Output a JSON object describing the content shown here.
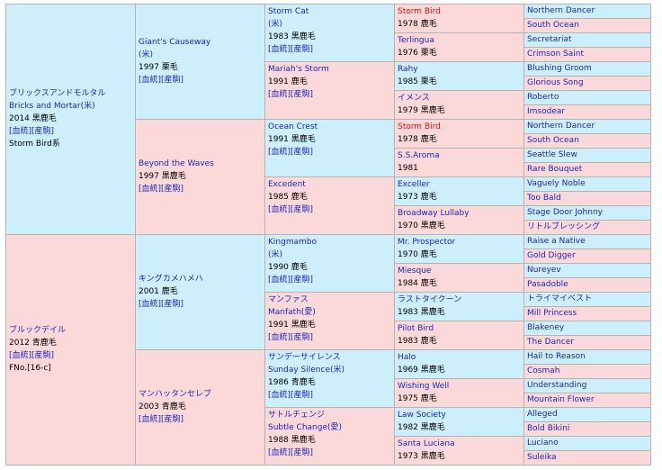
{
  "pedigree": {
    "sire": {
      "name": "ブリックスアンドモルタル",
      "name_en": "Bricks and Mortar(米)",
      "year_color": "2014 黒鹿毛",
      "links": "[血統][産駒]",
      "line": "Storm Bird系",
      "sire": {
        "name": "Giant's Causeway",
        "origin": "(米)",
        "year_color": "1997 栗毛",
        "links": "[血統][産駒]",
        "sire": {
          "name": "Storm Cat",
          "origin": "(米)",
          "year_color": "1983 黒鹿毛",
          "links": "[血統][産駒]",
          "sire": {
            "name": "Storm Bird",
            "year_color": "1978 鹿毛",
            "sire": "Northern Dancer",
            "dam": "South Ocean"
          },
          "dam": {
            "name": "Terlingua",
            "year_color": "1976 栗毛",
            "sire": "Secretariat",
            "dam": "Crimson Saint"
          }
        },
        "dam": {
          "name": "Mariah's Storm",
          "year_color": "1991 鹿毛",
          "links": "[血統][産駒]",
          "sire": {
            "name": "Rahy",
            "year_color": "1985 栗毛",
            "sire": "Blushing Groom",
            "dam": "Glorious Song"
          },
          "dam": {
            "name": "イメンス",
            "year_color": "1979 黒鹿毛",
            "sire": "Roberto",
            "dam": "Imsodear"
          }
        }
      },
      "dam": {
        "name": "Beyond the Waves",
        "year_color": "1997 黒鹿毛",
        "links": "[血統][産駒]",
        "sire": {
          "name": "Ocean Crest",
          "year_color": "1991 黒鹿毛",
          "links": "[血統][産駒]",
          "sire": {
            "name": "Storm Bird",
            "year_color": "1978 鹿毛",
            "sire": "Northern Dancer",
            "dam": "South Ocean"
          },
          "dam": {
            "name": "S.S.Aroma",
            "year_color": "1981",
            "sire": "Seattle Slew",
            "dam": "Rare Bouquet"
          }
        },
        "dam": {
          "name": "Excedent",
          "year_color": "1985 鹿毛",
          "links": "[血統][産駒]",
          "sire": {
            "name": "Exceller",
            "year_color": "1973 鹿毛",
            "sire": "Vaguely Noble",
            "dam": "Too Bald"
          },
          "dam": {
            "name": "Broadway Lullaby",
            "year_color": "1970 黒鹿毛",
            "sire": "Stage Door Johnny",
            "dam": "リトルブレッシング"
          }
        }
      }
    },
    "dam": {
      "name": "ブルックデイル",
      "year_color": "2012 青鹿毛",
      "links": "[血統][産駒]",
      "family": "FNo.[16-c]",
      "sire": {
        "name": "キングカメハメハ",
        "year_color": "2001 鹿毛",
        "links": "[血統][産駒]",
        "sire": {
          "name": "Kingmambo",
          "origin": "(米)",
          "year_color": "1990 鹿毛",
          "links": "[血統][産駒]",
          "sire": {
            "name": "Mr. Prospector",
            "year_color": "1970 鹿毛",
            "sire": "Raise a Native",
            "dam": "Gold Digger"
          },
          "dam": {
            "name": "Miesque",
            "year_color": "1984 鹿毛",
            "sire": "Nureyev",
            "dam": "Pasadoble"
          }
        },
        "dam": {
          "name": "マンファス",
          "name_en": "Manfath(愛)",
          "year_color": "1991 黒鹿毛",
          "links": "[血統][産駒]",
          "sire": {
            "name": "ラストタイクーン",
            "year_color": "1983 黒鹿毛",
            "sire": "トライマイベスト",
            "dam": "Mill Princess"
          },
          "dam": {
            "name": "Pilot Bird",
            "year_color": "1983 鹿毛",
            "sire": "Blakeney",
            "dam": "The Dancer"
          }
        }
      },
      "dam": {
        "name": "マンハッタンセレブ",
        "year_color": "2003 青鹿毛",
        "links": "[血統][産駒]",
        "sire": {
          "name": "サンデーサイレンス",
          "name_en": "Sunday Silence(米)",
          "year_color": "1986 青鹿毛",
          "links": "[血統][産駒]",
          "sire": {
            "name": "Halo",
            "year_color": "1969 黒鹿毛",
            "sire": "Hail to Reason",
            "dam": "Cosmah"
          },
          "dam": {
            "name": "Wishing Well",
            "year_color": "1975 鹿毛",
            "sire": "Understanding",
            "dam": "Mountain Flower"
          }
        },
        "dam": {
          "name": "サトルチェンジ",
          "name_en": "Subtle Change(愛)",
          "year_color": "1988 黒鹿毛",
          "links": "[血統][産駒]",
          "sire": {
            "name": "Law Society",
            "year_color": "1982 黒鹿毛",
            "sire": "Alleged",
            "dam": "Bold Bikini"
          },
          "dam": {
            "name": "Santa Luciana",
            "year_color": "1973 黒鹿毛",
            "sire": "Luciano",
            "dam": "Suleika"
          }
        }
      }
    }
  },
  "colors": {
    "male_bg": "#cdeffb",
    "female_bg": "#fcd9d9",
    "link": "#1a25c7",
    "inbreed": "#e0101a"
  }
}
